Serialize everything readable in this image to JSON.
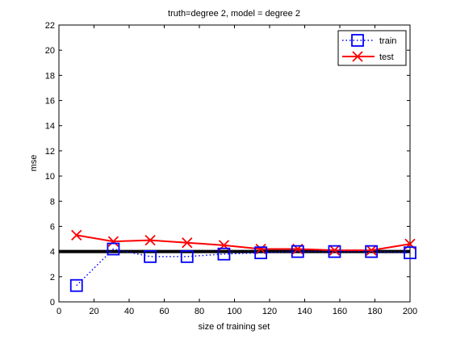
{
  "chart_data": {
    "type": "line",
    "title": "truth=degree 2, model = degree 2",
    "xlabel": "size of training set",
    "ylabel": "mse",
    "xlim": [
      0,
      200
    ],
    "ylim": [
      0,
      22
    ],
    "xticks": [
      0,
      20,
      40,
      60,
      80,
      100,
      120,
      140,
      160,
      180,
      200
    ],
    "yticks": [
      0,
      2,
      4,
      6,
      8,
      10,
      12,
      14,
      16,
      18,
      20,
      22
    ],
    "grid": false,
    "legend_position": "top-right",
    "x": [
      10,
      31,
      52,
      73,
      94,
      115,
      136,
      157,
      178,
      200
    ],
    "series": [
      {
        "name": "train",
        "color": "#0000ff",
        "line_style": "dotted",
        "marker": "square",
        "values": [
          1.3,
          4.2,
          3.6,
          3.6,
          3.8,
          3.9,
          4.0,
          4.0,
          4.0,
          3.9
        ]
      },
      {
        "name": "test",
        "color": "#ff0000",
        "line_style": "solid",
        "marker": "x",
        "values": [
          5.3,
          4.8,
          4.9,
          4.7,
          4.5,
          4.2,
          4.2,
          4.1,
          4.1,
          4.6
        ]
      }
    ],
    "reference_line": {
      "y": 4,
      "color": "#000000"
    }
  }
}
